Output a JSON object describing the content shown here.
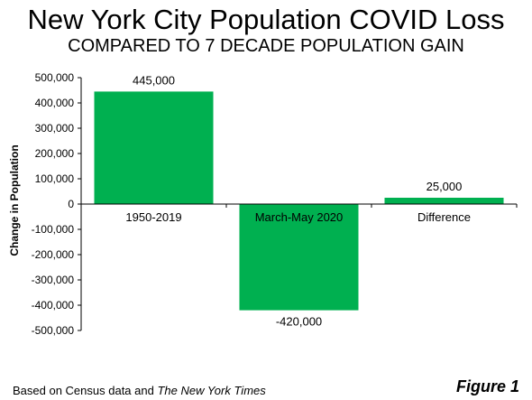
{
  "chart_data": {
    "type": "bar",
    "title": "New York City Population COVID Loss",
    "subtitle": "COMPARED TO 7 DECADE POPULATION GAIN",
    "categories": [
      "1950-2019",
      "March-May 2020",
      "Difference"
    ],
    "values": [
      445000,
      -420000,
      25000
    ],
    "data_labels": [
      "445,000",
      "-420,000",
      "25,000"
    ],
    "xlabel": "",
    "ylabel": "Change in Population",
    "ylim": [
      -500000,
      500000
    ],
    "yticks": [
      500000,
      400000,
      300000,
      200000,
      100000,
      0,
      -100000,
      -200000,
      -300000,
      -400000,
      -500000
    ],
    "ytick_labels": [
      "500,000",
      "400,000",
      "300,000",
      "200,000",
      "100,000",
      "0",
      "-100,000",
      "-200,000",
      "-300,000",
      "-400,000",
      "-500,000"
    ],
    "grid": false,
    "bar_color": "#00b050"
  },
  "footnote": {
    "prefix": "Based on Census data and ",
    "source": "The New York Times"
  },
  "figure_label": "Figure 1"
}
